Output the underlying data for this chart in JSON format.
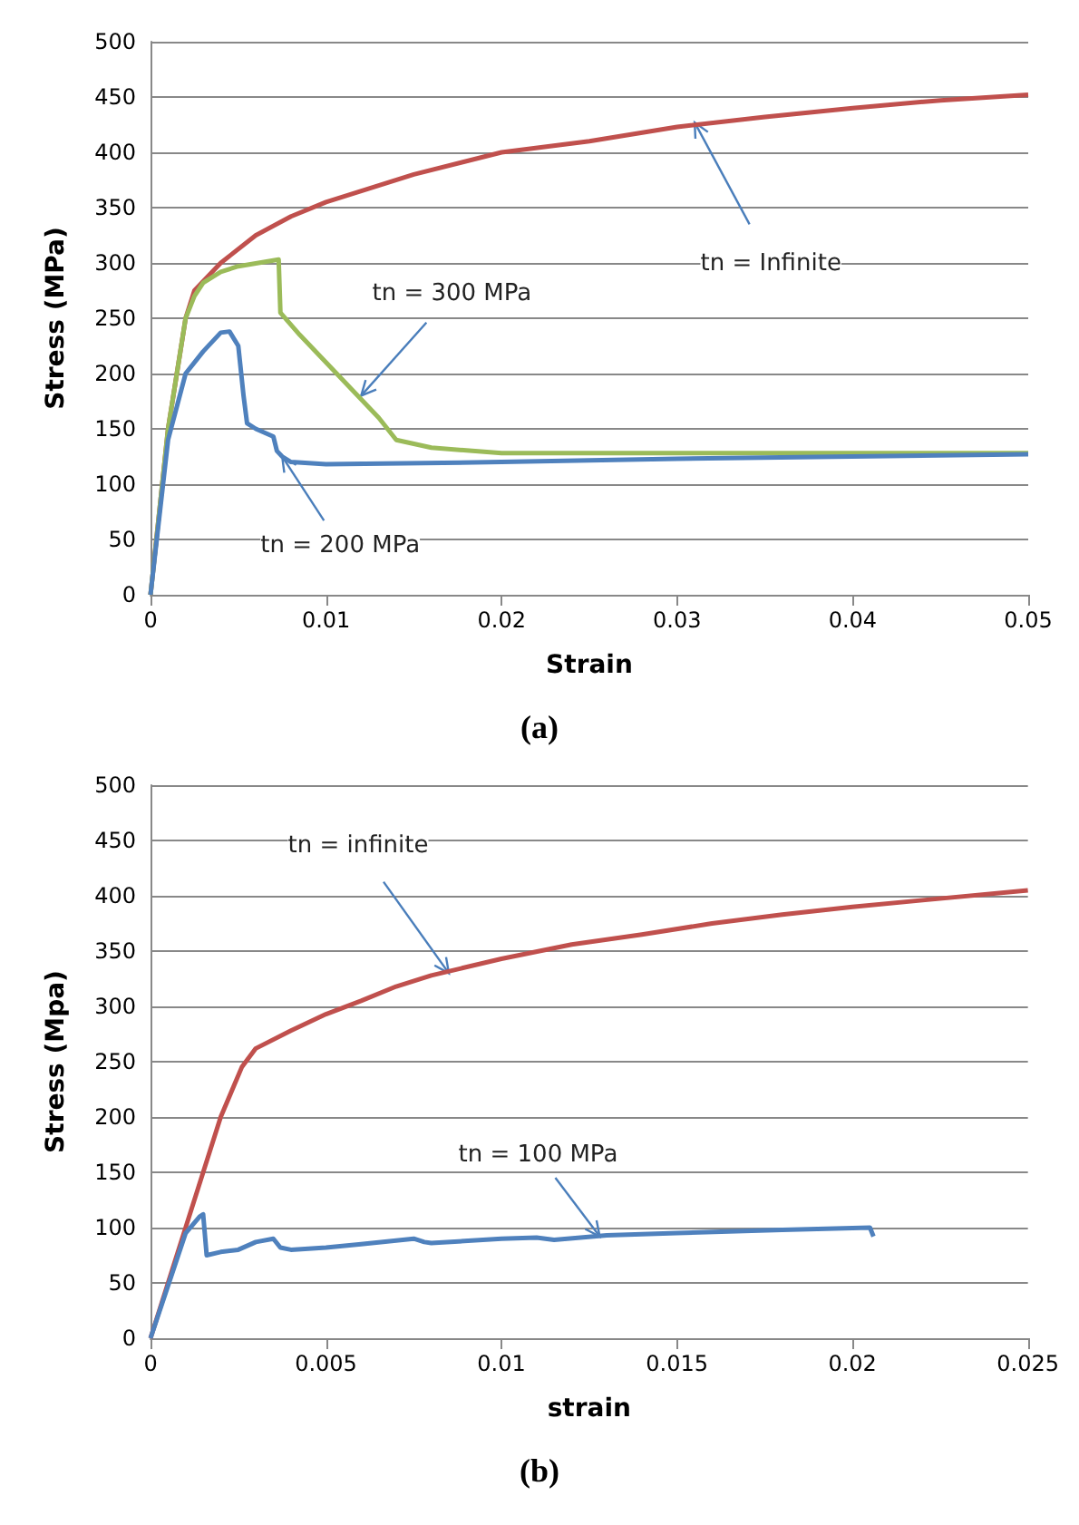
{
  "chart_data": [
    {
      "type": "line",
      "xlabel": "Strain",
      "ylabel": "Stress (MPa)",
      "xlim": [
        0,
        0.05
      ],
      "xticks": [
        0,
        0.01,
        0.02,
        0.03,
        0.04,
        0.05
      ],
      "ylim": [
        0,
        500
      ],
      "yticks": [
        0,
        50,
        100,
        150,
        200,
        250,
        300,
        350,
        400,
        450,
        500
      ],
      "grid": "y",
      "marker": "none",
      "line_style": "solid",
      "series": [
        {
          "color": "#c0504d",
          "x": [
            0,
            0.001,
            0.002,
            0.0025,
            0.004,
            0.006,
            0.008,
            0.01,
            0.015,
            0.02,
            0.025,
            0.03,
            0.035,
            0.04,
            0.045,
            0.05
          ],
          "values": [
            0,
            150,
            250,
            275,
            300,
            325,
            342,
            355,
            380,
            400,
            410,
            423,
            432,
            440,
            447,
            452
          ]
        },
        {
          "color": "#9bbb59",
          "x": [
            0,
            0.001,
            0.002,
            0.0025,
            0.003,
            0.004,
            0.005,
            0.0073,
            0.0074,
            0.0085,
            0.01,
            0.0115,
            0.013,
            0.014,
            0.016,
            0.02,
            0.03,
            0.05
          ],
          "values": [
            0,
            150,
            250,
            270,
            282,
            292,
            297,
            303,
            255,
            235,
            210,
            185,
            160,
            140,
            133,
            128,
            128,
            128
          ]
        },
        {
          "color": "#4f81bd",
          "x": [
            0,
            0.001,
            0.002,
            0.003,
            0.004,
            0.0045,
            0.005,
            0.0053,
            0.0055,
            0.006,
            0.007,
            0.0072,
            0.0075,
            0.008,
            0.01,
            0.02,
            0.03,
            0.05
          ],
          "values": [
            0,
            140,
            200,
            220,
            237,
            238,
            225,
            180,
            155,
            150,
            143,
            130,
            125,
            120,
            118,
            120,
            123,
            127
          ]
        }
      ],
      "annotations": [
        {
          "text": "tn = 300 MPa",
          "x": 0.012,
          "y": 180
        },
        {
          "text": "tn = 200 MPa",
          "x": 0.0075,
          "y": 125
        },
        {
          "text": "tn = Infinite",
          "x": 0.031,
          "y": 427
        },
        "(a)"
      ]
    },
    {
      "type": "line",
      "xlabel": "strain",
      "ylabel": "Stress (Mpa)",
      "xlim": [
        0,
        0.025
      ],
      "xticks": [
        0,
        0.005,
        0.01,
        0.015,
        0.02,
        0.025
      ],
      "ylim": [
        0,
        500
      ],
      "yticks": [
        0,
        50,
        100,
        150,
        200,
        250,
        300,
        350,
        400,
        450,
        500
      ],
      "grid": "y",
      "marker": "none",
      "line_style": "solid",
      "series": [
        {
          "color": "#c0504d",
          "x": [
            0,
            0.0005,
            0.001,
            0.0015,
            0.002,
            0.0026,
            0.003,
            0.004,
            0.005,
            0.006,
            0.007,
            0.008,
            0.01,
            0.012,
            0.014,
            0.016,
            0.018,
            0.02,
            0.022,
            0.025
          ],
          "values": [
            0,
            50,
            100,
            150,
            200,
            245,
            262,
            278,
            293,
            305,
            318,
            328,
            343,
            356,
            365,
            375,
            383,
            390,
            396,
            405
          ]
        },
        {
          "color": "#4f81bd",
          "x": [
            0,
            0.001,
            0.0014,
            0.0015,
            0.0016,
            0.002,
            0.0025,
            0.003,
            0.0035,
            0.0037,
            0.004,
            0.005,
            0.006,
            0.0075,
            0.0078,
            0.008,
            0.01,
            0.011,
            0.0115,
            0.013,
            0.015,
            0.018,
            0.0205,
            0.0206
          ],
          "values": [
            0,
            95,
            110,
            112,
            75,
            78,
            80,
            87,
            90,
            82,
            80,
            82,
            85,
            90,
            87,
            86,
            90,
            91,
            89,
            93,
            95,
            98,
            100,
            92
          ]
        }
      ],
      "annotations": [
        {
          "text": "tn = infinite",
          "x": 0.0085,
          "y": 330
        },
        {
          "text": "tn = 100 MPa",
          "x": 0.0128,
          "y": 92
        },
        "(b)"
      ]
    }
  ]
}
